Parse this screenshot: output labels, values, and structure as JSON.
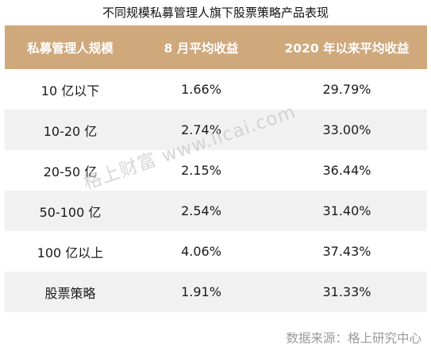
{
  "title": "不同规模私募管理人旗下股票策略产品表现",
  "table": {
    "headers": [
      "私募管理人规模",
      "8 月平均收益",
      "2020 年以来平均收益"
    ],
    "rows": [
      [
        "10 亿以下",
        "1.66%",
        "29.79%"
      ],
      [
        "10-20 亿",
        "2.74%",
        "33.00%"
      ],
      [
        "20-50 亿",
        "2.15%",
        "36.44%"
      ],
      [
        "50-100 亿",
        "2.54%",
        "31.40%"
      ],
      [
        "100 亿以上",
        "4.06%",
        "37.43%"
      ],
      [
        "股票策略",
        "1.91%",
        "31.33%"
      ]
    ]
  },
  "watermark": "格上财富 www.licai.com",
  "source": "数据来源：格上研究中心",
  "colors": {
    "header_bg": "#cfa87c",
    "header_text": "#ffffff",
    "stripe_bg": "#f1f1f1"
  }
}
